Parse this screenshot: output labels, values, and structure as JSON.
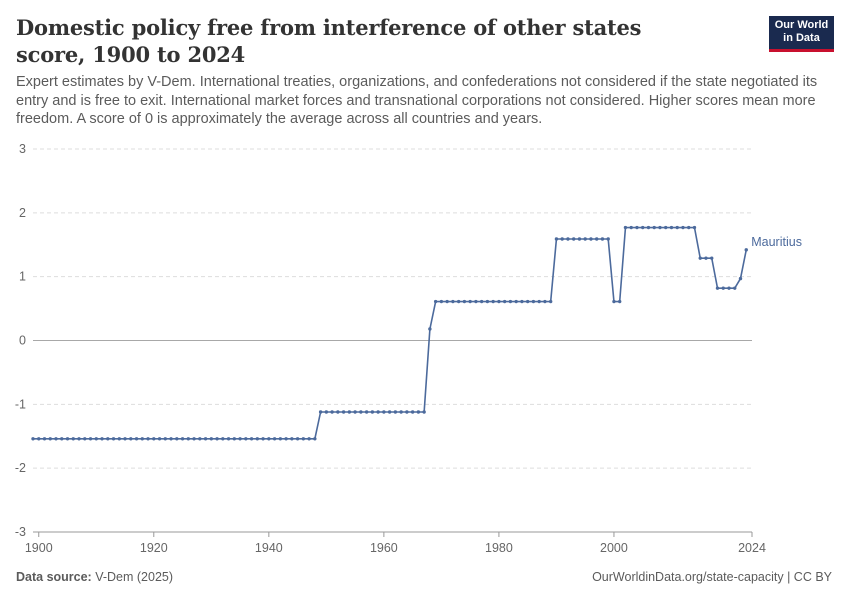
{
  "header": {
    "title": "Domestic policy free from interference of other states score, 1900 to 2024",
    "subtitle": "Expert estimates by V-Dem. International treaties, organizations, and confederations not considered if the state negotiated its entry and is free to exit. International market forces and transnational corporations not considered. Higher scores mean more freedom. A score of 0 is approximately the average across all countries and years.",
    "logo_line1": "Our World",
    "logo_line2": "in Data"
  },
  "footer": {
    "source_label": "Data source:",
    "source_value": "V-Dem (2025)",
    "url": "OurWorldinData.org/state-capacity | CC BY"
  },
  "colors": {
    "series": "#4c6a9c",
    "grid": "#dddddd",
    "zero_line": "#a8a8a8",
    "logo_bg": "#1a2a4f",
    "logo_accent": "#c8102e"
  },
  "chart_data": {
    "type": "line",
    "title": "Domestic policy free from interference of other states score, 1900 to 2024",
    "xlabel": "",
    "ylabel": "",
    "xlim": [
      1899,
      2024
    ],
    "ylim": [
      -3,
      3
    ],
    "x_ticks": [
      1900,
      1920,
      1940,
      1960,
      1980,
      2000,
      2024
    ],
    "y_ticks": [
      -3,
      -2,
      -1,
      0,
      1,
      2,
      3
    ],
    "grid": true,
    "series": [
      {
        "name": "Mauritius",
        "points": [
          [
            1899,
            -1.54
          ],
          [
            1948,
            -1.54
          ],
          [
            1949,
            -1.12
          ],
          [
            1967,
            -1.12
          ],
          [
            1968,
            0.18
          ],
          [
            1969,
            0.61
          ],
          [
            1989,
            0.61
          ],
          [
            1990,
            1.59
          ],
          [
            1999,
            1.59
          ],
          [
            2000,
            0.61
          ],
          [
            2001,
            0.61
          ],
          [
            2002,
            1.77
          ],
          [
            2014,
            1.77
          ],
          [
            2015,
            1.29
          ],
          [
            2017,
            1.29
          ],
          [
            2018,
            0.82
          ],
          [
            2021,
            0.82
          ],
          [
            2022,
            0.97
          ],
          [
            2023,
            1.42
          ]
        ]
      }
    ]
  }
}
